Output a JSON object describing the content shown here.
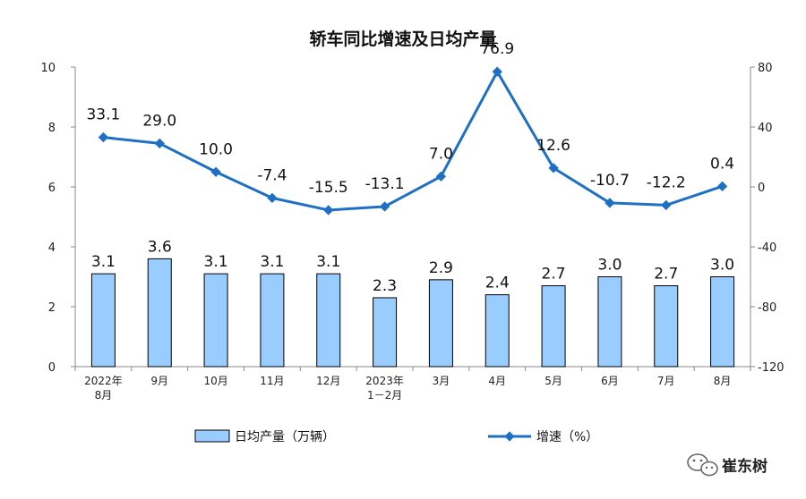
{
  "chart_data": {
    "type": "bar+line",
    "title": "轿车同比增速及日均产量",
    "categories": [
      [
        "2022年",
        "8月"
      ],
      [
        "9月"
      ],
      [
        "10月"
      ],
      [
        "11月"
      ],
      [
        "12月"
      ],
      [
        "2023年",
        "1－2月"
      ],
      [
        "3月"
      ],
      [
        "4月"
      ],
      [
        "5月"
      ],
      [
        "6月"
      ],
      [
        "7月"
      ],
      [
        "8月"
      ]
    ],
    "series": [
      {
        "name": "日均产量（万辆）",
        "type": "bar",
        "axis": "left",
        "color": "#99ccff",
        "values": [
          3.1,
          3.6,
          3.1,
          3.1,
          3.1,
          2.3,
          2.9,
          2.4,
          2.7,
          3.0,
          2.7,
          3.0
        ],
        "labels": [
          "3.1",
          "3.6",
          "3.1",
          "3.1",
          "3.1",
          "2.3",
          "2.9",
          "2.4",
          "2.7",
          "3.0",
          "2.7",
          "3.0"
        ]
      },
      {
        "name": "增速（%）",
        "type": "line",
        "axis": "right",
        "color": "#1f6fc4",
        "values": [
          33.1,
          29.0,
          10.0,
          -7.4,
          -15.5,
          -13.1,
          7.0,
          76.9,
          12.6,
          -10.7,
          -12.2,
          0.4
        ],
        "labels": [
          "33.1",
          "29.0",
          "10.0",
          "-7.4",
          "-15.5",
          "-13.1",
          "7.0",
          "76.9",
          "12.6",
          "-10.7",
          "-12.2",
          "0.4"
        ]
      }
    ],
    "y_left": {
      "range": [
        0,
        10
      ],
      "ticks": [
        "0",
        "2",
        "4",
        "6",
        "8",
        "10"
      ]
    },
    "y_right": {
      "range": [
        -120,
        80
      ],
      "ticks": [
        "-120",
        "-80",
        "-40",
        "0",
        "40",
        "80"
      ]
    },
    "grid": false,
    "legend_position": "bottom"
  },
  "watermark": {
    "text": "崔东树",
    "icon": "wechat-icon"
  }
}
